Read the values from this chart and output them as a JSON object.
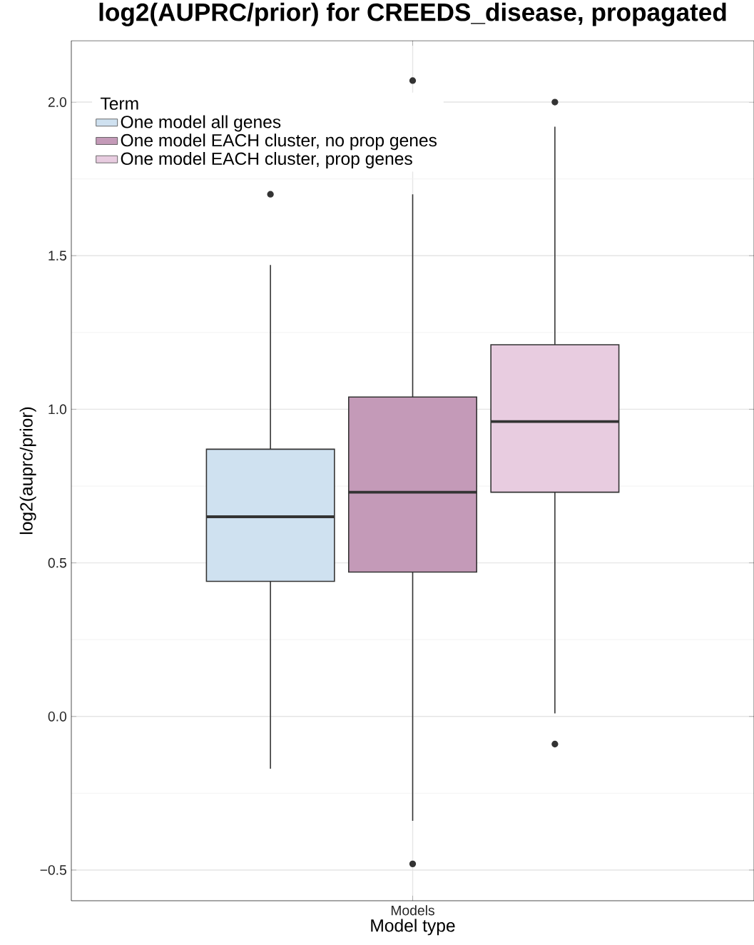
{
  "chart_data": {
    "type": "box",
    "title": "log2(AUPRC/prior) for CREEDS_disease, propagated",
    "xlabel": "Model type",
    "ylabel": "log2(auprc/prior)",
    "legend_title": "Term",
    "categories": [
      "Models"
    ],
    "series": [
      {
        "name": "One model all genes",
        "color": "#cfe1f0",
        "boxes": [
          {
            "low": -0.17,
            "q1": 0.44,
            "median": 0.65,
            "q3": 0.87,
            "high": 1.47,
            "outliers": [
              1.7
            ]
          }
        ]
      },
      {
        "name": "One model EACH cluster, no prop genes",
        "color": "#c49ab8",
        "boxes": [
          {
            "low": -0.34,
            "q1": 0.47,
            "median": 0.73,
            "q3": 1.04,
            "high": 1.7,
            "outliers": [
              2.07,
              -0.48
            ]
          }
        ]
      },
      {
        "name": "One model EACH cluster, prop genes",
        "color": "#e8cce0",
        "boxes": [
          {
            "low": 0.01,
            "q1": 0.73,
            "median": 0.96,
            "q3": 1.21,
            "high": 1.92,
            "outliers": [
              2.0,
              -0.09
            ]
          }
        ]
      }
    ],
    "ylim": [
      -0.6,
      2.2
    ],
    "yticks": [
      {
        "value": -0.5,
        "label": "−0.5"
      },
      {
        "value": 0,
        "label": "0.0"
      },
      {
        "value": 0.5,
        "label": "0.5"
      },
      {
        "value": 1,
        "label": "1.0"
      },
      {
        "value": 1.5,
        "label": "1.5"
      },
      {
        "value": 2,
        "label": "2.0"
      }
    ],
    "grid": true,
    "legend": "top left"
  }
}
